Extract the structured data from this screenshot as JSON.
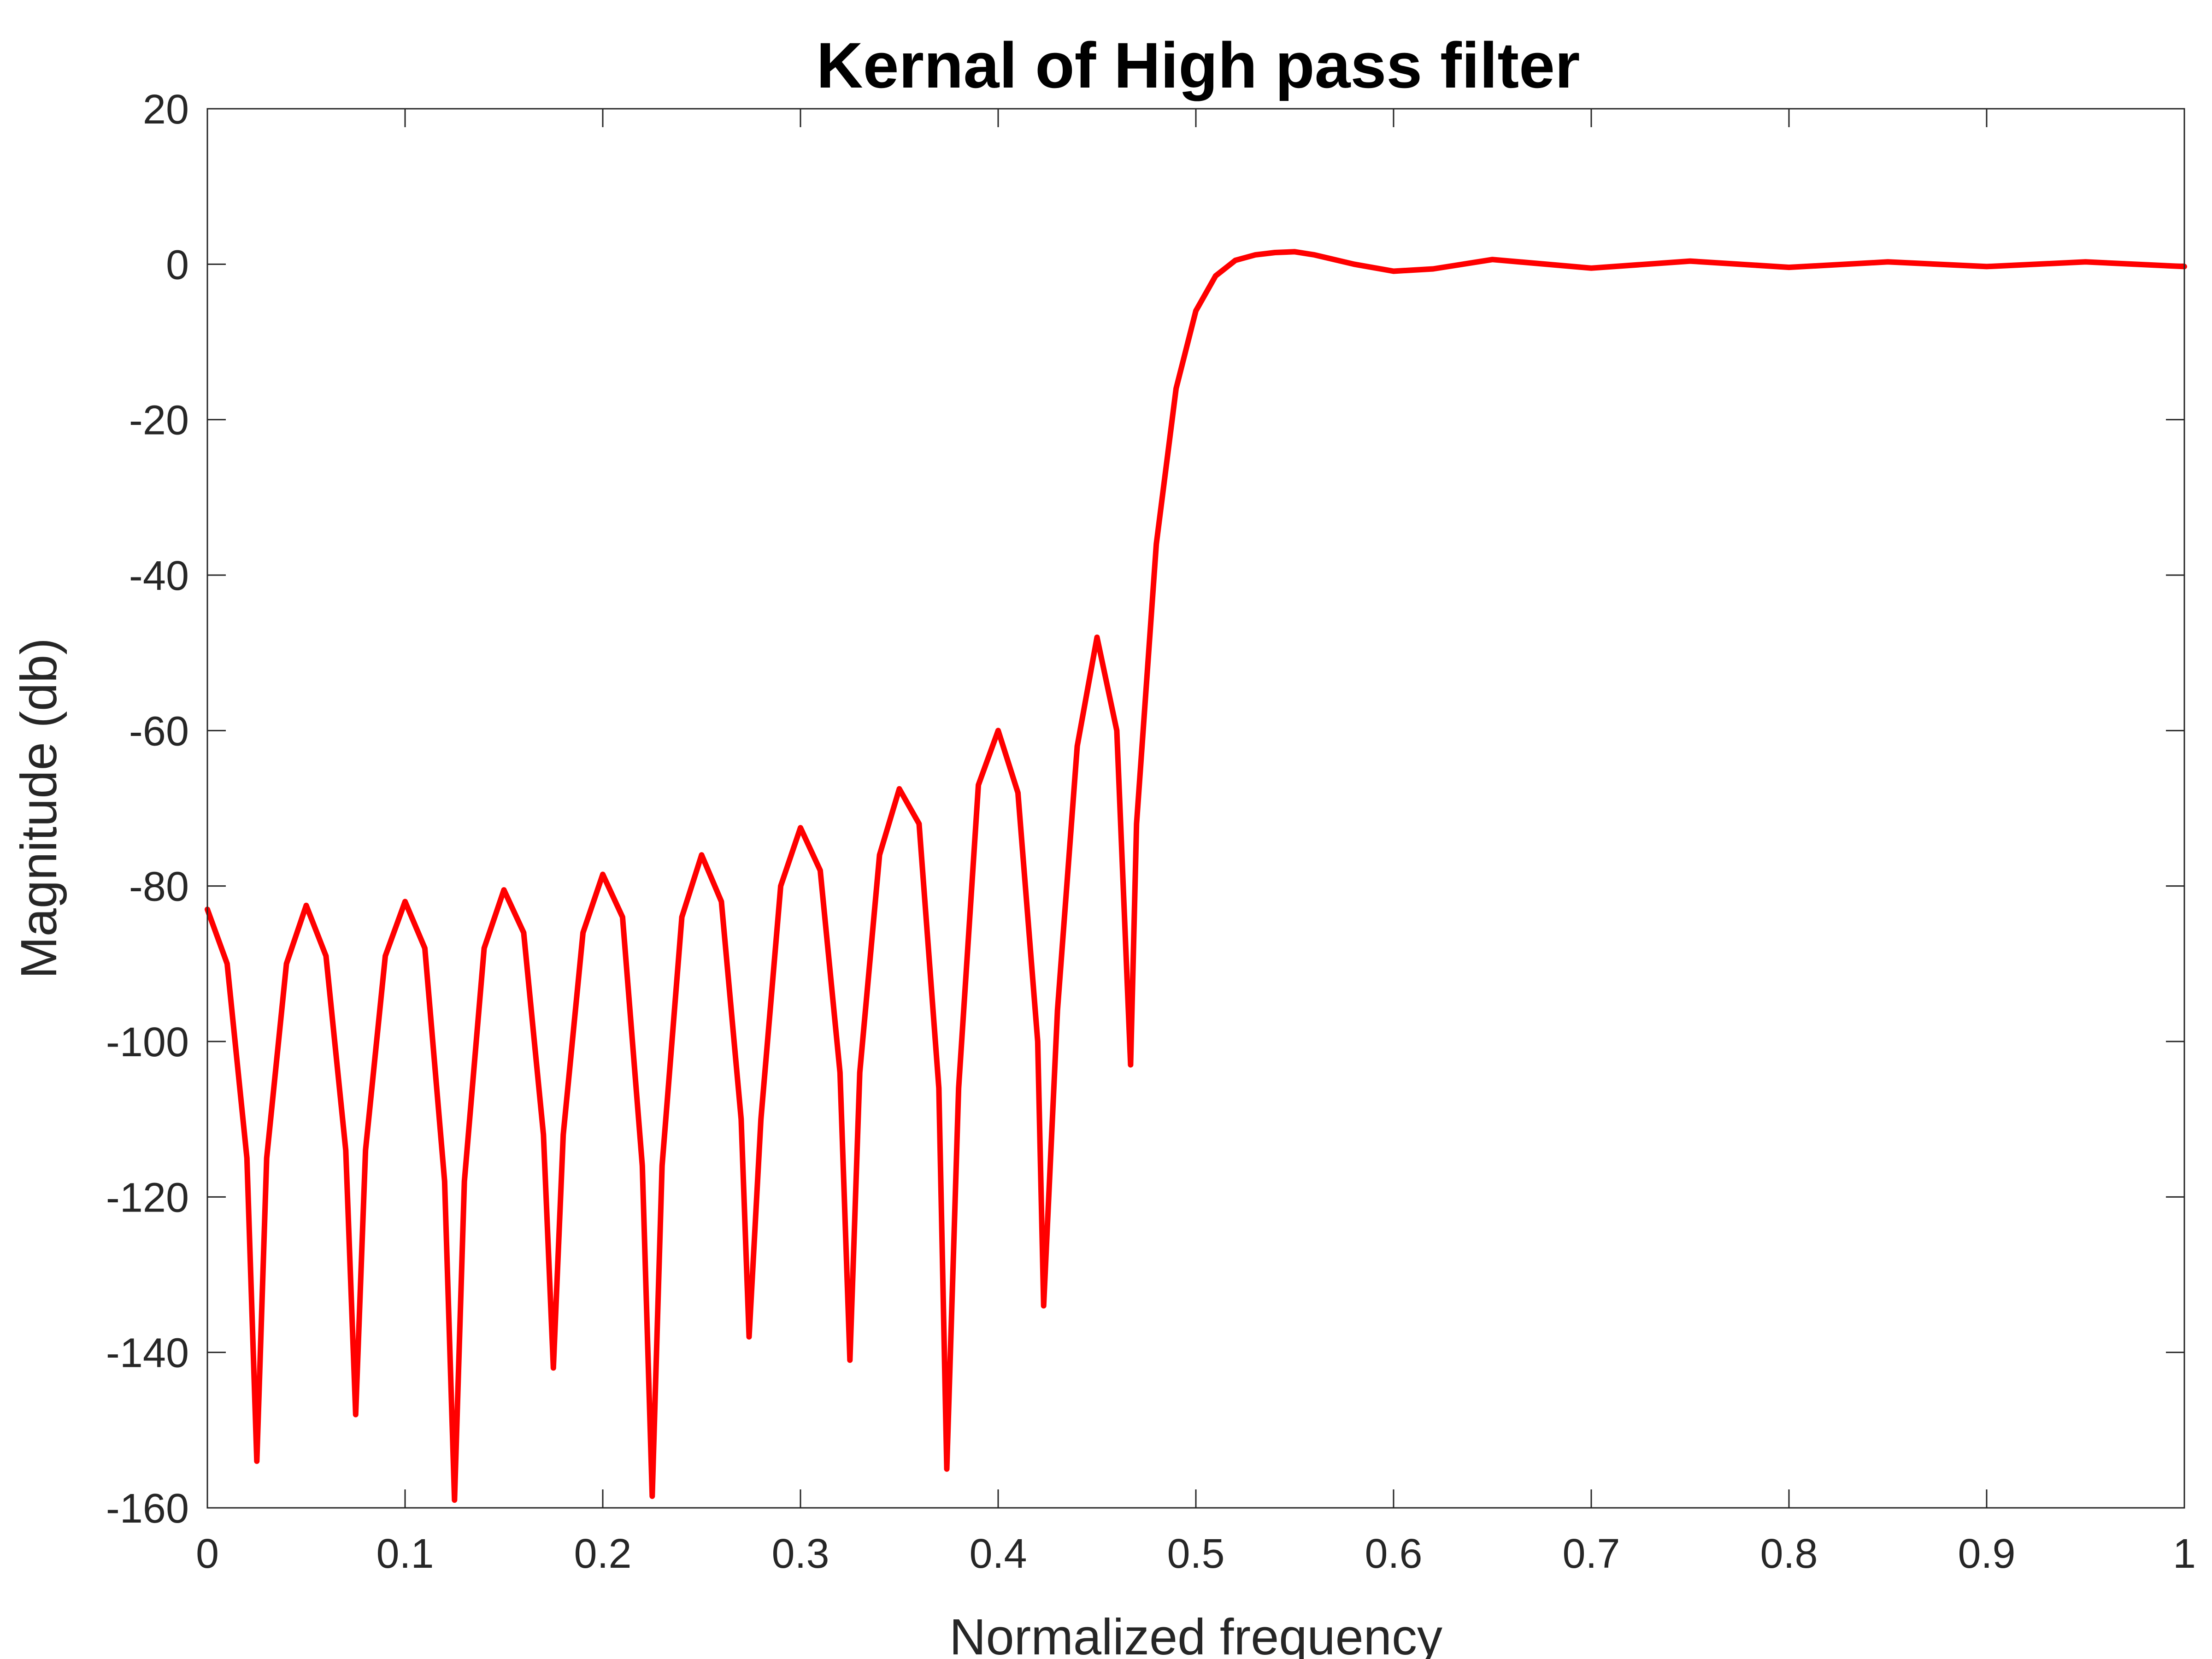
{
  "chart_data": {
    "type": "line",
    "title": "Kernal of High pass filter",
    "xlabel": "Normalized frequency",
    "ylabel": "Magnitude (db)",
    "xlim": [
      0,
      1
    ],
    "ylim": [
      -160,
      20
    ],
    "x_ticks": [
      "0",
      "0.1",
      "0.2",
      "0.3",
      "0.4",
      "0.5",
      "0.6",
      "0.7",
      "0.8",
      "0.9",
      "1"
    ],
    "y_ticks": [
      "20",
      "0",
      "-20",
      "-40",
      "-60",
      "-80",
      "-100",
      "-120",
      "-140",
      "-160"
    ],
    "grid": false,
    "line_color": "#ff0000",
    "series": [
      {
        "x": [
          0,
          0.01,
          0.02,
          0.025,
          0.03,
          0.04,
          0.05,
          0.06,
          0.07,
          0.075,
          0.08,
          0.09,
          0.1,
          0.11,
          0.12,
          0.125,
          0.13,
          0.14,
          0.15,
          0.16,
          0.17,
          0.175,
          0.18,
          0.19,
          0.2,
          0.21,
          0.22,
          0.225,
          0.23,
          0.24,
          0.25,
          0.26,
          0.27,
          0.274,
          0.28,
          0.29,
          0.3,
          0.31,
          0.32,
          0.325,
          0.33,
          0.34,
          0.35,
          0.36,
          0.37,
          0.374,
          0.38,
          0.39,
          0.4,
          0.41,
          0.42,
          0.423,
          0.43,
          0.44,
          0.45,
          0.46,
          0.467,
          0.47,
          0.48,
          0.49,
          0.5,
          0.51,
          0.52,
          0.53,
          0.54,
          0.55,
          0.56,
          0.58,
          0.6,
          0.62,
          0.65,
          0.7,
          0.75,
          0.8,
          0.85,
          0.9,
          0.95,
          1.0
        ],
        "y": [
          -83,
          -90,
          -115,
          -154,
          -115,
          -90,
          -82.5,
          -89,
          -114,
          -148,
          -114,
          -89,
          -82,
          -88,
          -118,
          -159,
          -118,
          -88,
          -80.5,
          -86,
          -112,
          -142,
          -112,
          -86,
          -78.5,
          -84,
          -116,
          -158.5,
          -116,
          -84,
          -76,
          -82,
          -110,
          -138,
          -110,
          -80,
          -72.5,
          -78,
          -104,
          -141,
          -104,
          -76,
          -67.5,
          -72,
          -106,
          -155,
          -106,
          -67,
          -60,
          -68,
          -100,
          -134,
          -96,
          -62,
          -48,
          -60,
          -103,
          -72,
          -36,
          -16,
          -6,
          -1.5,
          0.5,
          1.2,
          1.5,
          1.6,
          1.2,
          0,
          -0.9,
          -0.6,
          0.6,
          -0.5,
          0.4,
          -0.4,
          0.3,
          -0.3,
          0.3,
          -0.3
        ]
      }
    ]
  }
}
